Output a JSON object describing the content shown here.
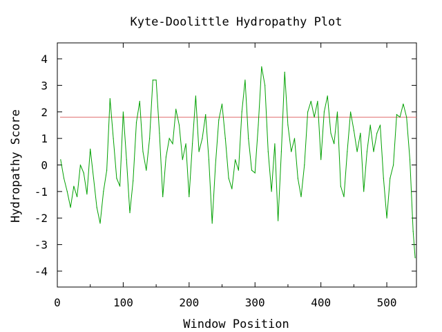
{
  "chart_data": {
    "type": "line",
    "title": "Kyte-Doolittle Hydropathy Plot",
    "xlabel": "Window Position",
    "ylabel": "Hydropathy Score",
    "xlim": [
      0,
      545
    ],
    "ylim": [
      -4.6,
      4.6
    ],
    "x_ticks": [
      0,
      100,
      200,
      300,
      400,
      500
    ],
    "y_ticks": [
      4,
      3,
      2,
      1,
      0,
      -1,
      -2,
      -3,
      -4
    ],
    "x_tick_labels": [
      "0",
      "100",
      "200",
      "300",
      "400",
      "500"
    ],
    "y_tick_labels": [
      "4",
      "3",
      "2",
      "1",
      "0",
      "-1",
      "-2",
      "-3",
      "-4"
    ],
    "grid": false,
    "threshold": {
      "value": 1.8,
      "color": "#e07070"
    },
    "series": [
      {
        "color": "#00a000",
        "x": [
          5,
          10,
          15,
          20,
          25,
          30,
          35,
          40,
          45,
          50,
          55,
          60,
          65,
          70,
          75,
          80,
          85,
          90,
          95,
          100,
          105,
          110,
          115,
          120,
          125,
          130,
          135,
          140,
          145,
          150,
          155,
          160,
          165,
          170,
          175,
          180,
          185,
          190,
          195,
          200,
          205,
          210,
          215,
          220,
          225,
          230,
          235,
          240,
          245,
          250,
          255,
          260,
          265,
          270,
          275,
          280,
          285,
          290,
          295,
          300,
          305,
          310,
          315,
          320,
          325,
          330,
          335,
          340,
          345,
          350,
          355,
          360,
          365,
          370,
          375,
          380,
          385,
          390,
          395,
          400,
          405,
          410,
          415,
          420,
          425,
          430,
          435,
          440,
          445,
          450,
          455,
          460,
          465,
          470,
          475,
          480,
          485,
          490,
          495,
          500,
          505,
          510,
          515,
          520,
          525,
          530,
          535,
          540,
          543
        ],
        "y": [
          0.2,
          -0.5,
          -1.0,
          -1.6,
          -0.8,
          -1.2,
          0.0,
          -0.3,
          -1.1,
          0.6,
          -0.5,
          -1.6,
          -2.2,
          -1.0,
          -0.2,
          2.5,
          1.0,
          -0.5,
          -0.8,
          2.0,
          0.2,
          -1.8,
          -0.6,
          1.6,
          2.4,
          0.5,
          -0.2,
          1.0,
          3.2,
          3.2,
          1.2,
          -1.2,
          0.3,
          1.0,
          0.8,
          2.1,
          1.5,
          0.2,
          0.8,
          -1.2,
          0.8,
          2.6,
          0.5,
          1.0,
          1.9,
          0.2,
          -2.2,
          0.0,
          1.7,
          2.3,
          1.0,
          -0.5,
          -0.9,
          0.2,
          -0.2,
          2.0,
          3.2,
          1.0,
          -0.2,
          -0.3,
          1.5,
          3.7,
          3.0,
          0.5,
          -1.0,
          0.8,
          -2.1,
          0.5,
          3.5,
          1.5,
          0.5,
          1.0,
          -0.5,
          -1.2,
          0.0,
          2.0,
          2.4,
          1.8,
          2.4,
          0.2,
          2.0,
          2.6,
          1.2,
          0.8,
          2.0,
          -0.8,
          -1.2,
          0.5,
          2.0,
          1.3,
          0.5,
          1.2,
          -1.0,
          0.5,
          1.5,
          0.5,
          1.2,
          1.5,
          -0.5,
          -2.0,
          -0.5,
          0.0,
          1.9,
          1.8,
          2.3,
          1.8,
          0.2,
          -2.5,
          -3.5
        ]
      }
    ]
  }
}
